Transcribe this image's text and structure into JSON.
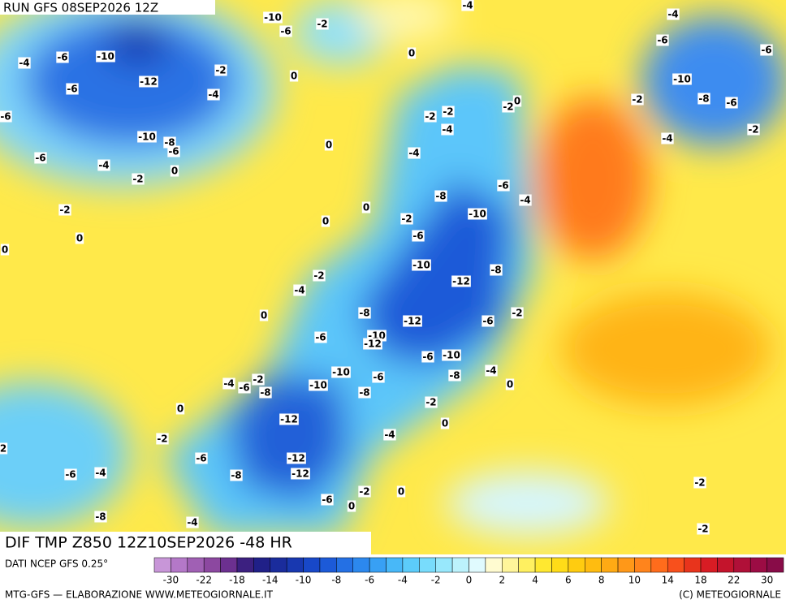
{
  "header": {
    "run": "RUN GFS 08SEP2026 12Z"
  },
  "map": {
    "title": "DIF TMP Z850 12Z10SEP2026 -48 HR",
    "contour_labels": [
      -10,
      -2,
      -6,
      -4,
      -4,
      -6,
      -6,
      -4,
      -6,
      -10,
      0,
      -2,
      0,
      -6,
      -12,
      -10,
      -4,
      -2,
      -8,
      -6,
      -6,
      -2,
      -2,
      -2,
      0,
      -4,
      -10,
      -8,
      -6,
      -2,
      -4,
      0,
      -6,
      -4,
      -4,
      0,
      -2,
      -6,
      -8,
      -4,
      -2,
      0,
      -10,
      -2,
      0,
      -6,
      0,
      0,
      -10,
      -8,
      -2,
      -12,
      -4,
      0,
      -8,
      -2,
      -12,
      -6,
      -6,
      -10,
      -12,
      -6,
      -10,
      -10,
      -4,
      -8,
      -6,
      -4,
      -6,
      -2,
      -8,
      -10,
      -8,
      0,
      -2,
      0,
      -12,
      0,
      -4,
      -2,
      -6,
      -12,
      -6,
      -4,
      -12,
      -8,
      -2,
      0,
      -6,
      0,
      -8,
      -4,
      -2,
      -2,
      2
    ]
  },
  "colorbar": {
    "source": "DATI NCEP GFS 0.25°",
    "colors": [
      "#c896d8",
      "#b478c8",
      "#a060b4",
      "#8c48a0",
      "#6c3090",
      "#3c2080",
      "#202088",
      "#1a2c9c",
      "#1838b0",
      "#1848c8",
      "#1c5ad8",
      "#2470e4",
      "#2c88ee",
      "#38a0f4",
      "#48b8f8",
      "#5cccfa",
      "#78dcfc",
      "#98e8fc",
      "#bcf2fc",
      "#e0fafe",
      "#fffbd0",
      "#fff59a",
      "#fff060",
      "#ffe830",
      "#ffdc18",
      "#ffcc10",
      "#ffbc10",
      "#ffaa14",
      "#ff9818",
      "#ff841c",
      "#ff6c1c",
      "#f8501c",
      "#e8341c",
      "#d81c24",
      "#c4142c",
      "#b01038",
      "#9c0c44",
      "#880c48"
    ],
    "ticks": [
      -30,
      -22,
      -18,
      -14,
      -10,
      -8,
      -6,
      -4,
      -2,
      0,
      2,
      4,
      6,
      8,
      10,
      14,
      18,
      22,
      30
    ]
  },
  "footer": {
    "left": "MTG-GFS — ELABORAZIONE WWW.METEOGIORNALE.IT",
    "right": "(C) METEOGIORNALE"
  }
}
